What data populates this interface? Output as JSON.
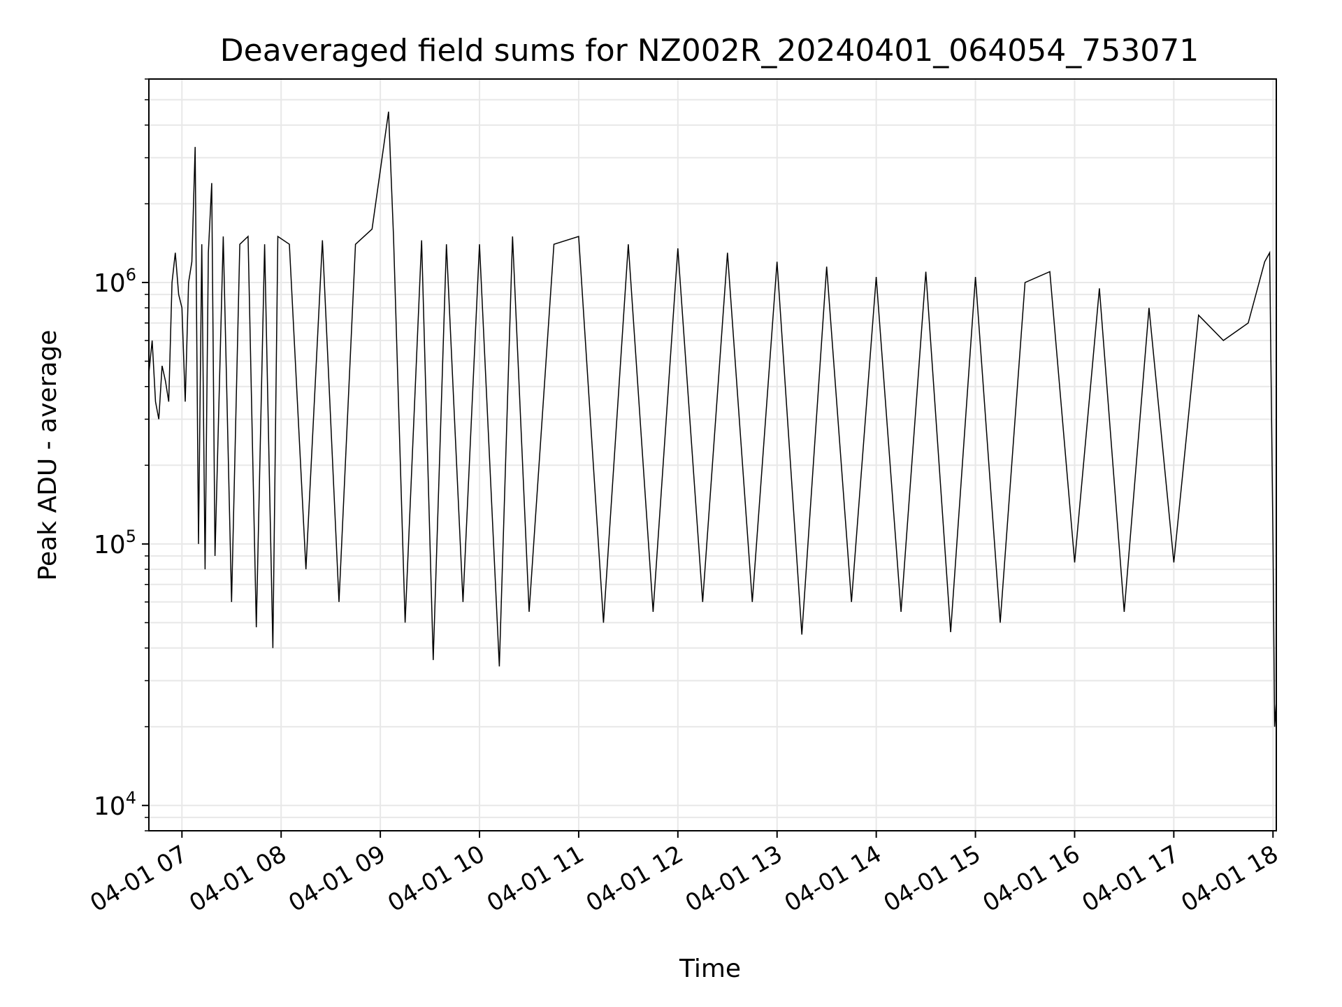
{
  "chart_data": {
    "type": "line",
    "title": "Deaveraged field sums for NZ002R_20240401_064054_753071",
    "xlabel": "Time",
    "ylabel": "Peak ADU - average",
    "x_scale": "time",
    "y_scale": "log",
    "xlim": [
      "2024-04-01 06:40",
      "2024-04-01 18:02"
    ],
    "ylim": [
      8000,
      6000000
    ],
    "grid": true,
    "x_ticks": [
      {
        "value": "2024-04-01 07:00",
        "label": "04-01 07"
      },
      {
        "value": "2024-04-01 08:00",
        "label": "04-01 08"
      },
      {
        "value": "2024-04-01 09:00",
        "label": "04-01 09"
      },
      {
        "value": "2024-04-01 10:00",
        "label": "04-01 10"
      },
      {
        "value": "2024-04-01 11:00",
        "label": "04-01 11"
      },
      {
        "value": "2024-04-01 12:00",
        "label": "04-01 12"
      },
      {
        "value": "2024-04-01 13:00",
        "label": "04-01 13"
      },
      {
        "value": "2024-04-01 14:00",
        "label": "04-01 14"
      },
      {
        "value": "2024-04-01 15:00",
        "label": "04-01 15"
      },
      {
        "value": "2024-04-01 16:00",
        "label": "04-01 16"
      },
      {
        "value": "2024-04-01 17:00",
        "label": "04-01 17"
      },
      {
        "value": "2024-04-01 18:00",
        "label": "04-01 18"
      }
    ],
    "y_ticks": [
      {
        "value": 10000,
        "base": "10",
        "exp": "4"
      },
      {
        "value": 100000,
        "base": "10",
        "exp": "5"
      },
      {
        "value": 1000000,
        "base": "10",
        "exp": "6"
      }
    ],
    "series": [
      {
        "color": "#000000",
        "x": [
          "2024-04-01 06:40",
          "2024-04-01 06:42",
          "2024-04-01 06:44",
          "2024-04-01 06:46",
          "2024-04-01 06:48",
          "2024-04-01 06:50",
          "2024-04-01 06:52",
          "2024-04-01 06:54",
          "2024-04-01 06:56",
          "2024-04-01 06:58",
          "2024-04-01 07:00",
          "2024-04-01 07:02",
          "2024-04-01 07:04",
          "2024-04-01 07:06",
          "2024-04-01 07:08",
          "2024-04-01 07:10",
          "2024-04-01 07:12",
          "2024-04-01 07:14",
          "2024-04-01 07:16",
          "2024-04-01 07:18",
          "2024-04-01 07:20",
          "2024-04-01 07:25",
          "2024-04-01 07:30",
          "2024-04-01 07:35",
          "2024-04-01 07:40",
          "2024-04-01 07:45",
          "2024-04-01 07:50",
          "2024-04-01 07:55",
          "2024-04-01 07:58",
          "2024-04-01 08:05",
          "2024-04-01 08:15",
          "2024-04-01 08:25",
          "2024-04-01 08:35",
          "2024-04-01 08:45",
          "2024-04-01 08:55",
          "2024-04-01 09:05",
          "2024-04-01 09:08",
          "2024-04-01 09:15",
          "2024-04-01 09:25",
          "2024-04-01 09:32",
          "2024-04-01 09:40",
          "2024-04-01 09:50",
          "2024-04-01 10:00",
          "2024-04-01 10:12",
          "2024-04-01 10:20",
          "2024-04-01 10:30",
          "2024-04-01 10:45",
          "2024-04-01 11:00",
          "2024-04-01 11:15",
          "2024-04-01 11:30",
          "2024-04-01 11:45",
          "2024-04-01 12:00",
          "2024-04-01 12:15",
          "2024-04-01 12:30",
          "2024-04-01 12:45",
          "2024-04-01 13:00",
          "2024-04-01 13:15",
          "2024-04-01 13:30",
          "2024-04-01 13:45",
          "2024-04-01 14:00",
          "2024-04-01 14:15",
          "2024-04-01 14:30",
          "2024-04-01 14:45",
          "2024-04-01 15:00",
          "2024-04-01 15:15",
          "2024-04-01 15:30",
          "2024-04-01 15:45",
          "2024-04-01 16:00",
          "2024-04-01 16:15",
          "2024-04-01 16:30",
          "2024-04-01 16:45",
          "2024-04-01 17:00",
          "2024-04-01 17:15",
          "2024-04-01 17:30",
          "2024-04-01 17:45",
          "2024-04-01 17:55",
          "2024-04-01 17:58",
          "2024-04-01 18:00",
          "2024-04-01 18:01",
          "2024-04-01 18:02"
        ],
        "y": [
          450000,
          600000,
          350000,
          300000,
          480000,
          420000,
          350000,
          1000000,
          1300000,
          900000,
          800000,
          350000,
          1000000,
          1200000,
          3300000,
          100000,
          1400000,
          80000,
          1300000,
          2400000,
          90000,
          1500000,
          60000,
          1400000,
          1500000,
          48000,
          1400000,
          40000,
          1500000,
          1400000,
          80000,
          1450000,
          60000,
          1400000,
          1600000,
          4500000,
          1500000,
          50000,
          1450000,
          36000,
          1400000,
          60000,
          1400000,
          34000,
          1500000,
          55000,
          1400000,
          1500000,
          50000,
          1400000,
          55000,
          1350000,
          60000,
          1300000,
          60000,
          1200000,
          45000,
          1150000,
          60000,
          1050000,
          55000,
          1100000,
          46000,
          1050000,
          50000,
          1000000,
          1100000,
          85000,
          950000,
          55000,
          800000,
          85000,
          750000,
          600000,
          700000,
          1200000,
          1300000,
          100000,
          20000,
          25000
        ]
      }
    ]
  }
}
